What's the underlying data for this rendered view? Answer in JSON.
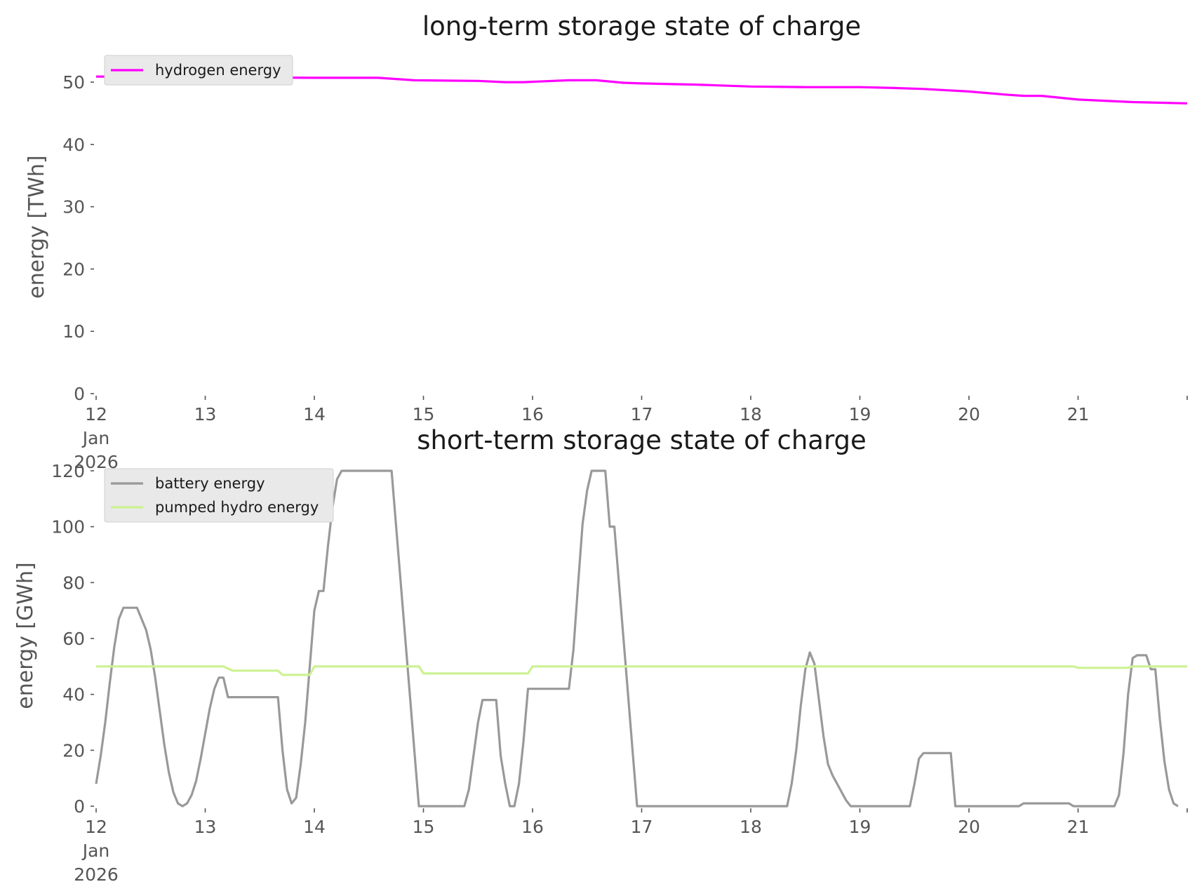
{
  "chart_data": [
    {
      "type": "line",
      "title": "long-term storage state of charge",
      "xlabel": "",
      "ylabel": "energy [TWh]",
      "xlim": [
        "2026-01-12",
        "2026-01-22"
      ],
      "ylim": [
        0,
        53.5
      ],
      "yticks": [
        0,
        10,
        20,
        30,
        40,
        50
      ],
      "xtick_labels": [
        "12",
        "13",
        "14",
        "15",
        "16",
        "17",
        "18",
        "19",
        "20",
        "21"
      ],
      "xtick_sublabels": [
        "Jan",
        "2026"
      ],
      "grid": false,
      "legend": "upper-left",
      "series": [
        {
          "name": "hydrogen energy",
          "color": "#ff00ff",
          "points": [
            [
              "2026-01-12 00:00",
              50.9
            ],
            [
              "2026-01-13 00:00",
              50.8
            ],
            [
              "2026-01-14 00:00",
              50.7
            ],
            [
              "2026-01-14 14:00",
              50.7
            ],
            [
              "2026-01-14 22:00",
              50.3
            ],
            [
              "2026-01-15 12:00",
              50.2
            ],
            [
              "2026-01-15 18:00",
              50.0
            ],
            [
              "2026-01-15 22:00",
              50.0
            ],
            [
              "2026-01-16 08:00",
              50.3
            ],
            [
              "2026-01-16 14:00",
              50.3
            ],
            [
              "2026-01-16 20:00",
              49.9
            ],
            [
              "2026-01-17 00:00",
              49.8
            ],
            [
              "2026-01-17 12:00",
              49.6
            ],
            [
              "2026-01-18 00:00",
              49.3
            ],
            [
              "2026-01-18 12:00",
              49.2
            ],
            [
              "2026-01-19 00:00",
              49.2
            ],
            [
              "2026-01-19 06:00",
              49.1
            ],
            [
              "2026-01-19 14:00",
              48.9
            ],
            [
              "2026-01-20 00:00",
              48.5
            ],
            [
              "2026-01-20 08:00",
              48.0
            ],
            [
              "2026-01-20 12:00",
              47.8
            ],
            [
              "2026-01-20 16:00",
              47.8
            ],
            [
              "2026-01-21 00:00",
              47.2
            ],
            [
              "2026-01-21 12:00",
              46.8
            ],
            [
              "2026-01-21 18:00",
              46.7
            ],
            [
              "2026-01-22 00:00",
              46.6
            ]
          ]
        }
      ]
    },
    {
      "type": "line",
      "title": "short-term storage state of charge",
      "xlabel": "",
      "ylabel": "energy [GWh]",
      "xlim": [
        "2026-01-12",
        "2026-01-22"
      ],
      "ylim": [
        0,
        122
      ],
      "yticks": [
        0,
        20,
        40,
        60,
        80,
        100,
        120
      ],
      "xtick_labels": [
        "12",
        "13",
        "14",
        "15",
        "16",
        "17",
        "18",
        "19",
        "20",
        "21"
      ],
      "xtick_sublabels": [
        "Jan",
        "2026"
      ],
      "grid": false,
      "legend": "upper-left",
      "series": [
        {
          "name": "battery energy",
          "color": "#999999",
          "points": [
            [
              "2026-01-12 00:00",
              8
            ],
            [
              "2026-01-12 01:00",
              18
            ],
            [
              "2026-01-12 02:00",
              30
            ],
            [
              "2026-01-12 03:00",
              44
            ],
            [
              "2026-01-12 04:00",
              57
            ],
            [
              "2026-01-12 05:00",
              67
            ],
            [
              "2026-01-12 06:00",
              71
            ],
            [
              "2026-01-12 07:00",
              71
            ],
            [
              "2026-01-12 08:00",
              71
            ],
            [
              "2026-01-12 09:00",
              71
            ],
            [
              "2026-01-12 10:00",
              67
            ],
            [
              "2026-01-12 11:00",
              63
            ],
            [
              "2026-01-12 12:00",
              56
            ],
            [
              "2026-01-12 13:00",
              46
            ],
            [
              "2026-01-12 14:00",
              34
            ],
            [
              "2026-01-12 15:00",
              22
            ],
            [
              "2026-01-12 16:00",
              12
            ],
            [
              "2026-01-12 17:00",
              5
            ],
            [
              "2026-01-12 18:00",
              1
            ],
            [
              "2026-01-12 19:00",
              0
            ],
            [
              "2026-01-12 20:00",
              1
            ],
            [
              "2026-01-12 21:00",
              4
            ],
            [
              "2026-01-12 22:00",
              9
            ],
            [
              "2026-01-12 23:00",
              17
            ],
            [
              "2026-01-13 00:00",
              26
            ],
            [
              "2026-01-13 01:00",
              35
            ],
            [
              "2026-01-13 02:00",
              42
            ],
            [
              "2026-01-13 03:00",
              46
            ],
            [
              "2026-01-13 04:00",
              46
            ],
            [
              "2026-01-13 05:00",
              39
            ],
            [
              "2026-01-13 06:00",
              39
            ],
            [
              "2026-01-13 16:00",
              39
            ],
            [
              "2026-01-13 17:00",
              20
            ],
            [
              "2026-01-13 18:00",
              6
            ],
            [
              "2026-01-13 19:00",
              1
            ],
            [
              "2026-01-13 20:00",
              3
            ],
            [
              "2026-01-13 21:00",
              15
            ],
            [
              "2026-01-13 22:00",
              30
            ],
            [
              "2026-01-13 23:00",
              50
            ],
            [
              "2026-01-14 00:00",
              70
            ],
            [
              "2026-01-14 01:00",
              77
            ],
            [
              "2026-01-14 02:00",
              77
            ],
            [
              "2026-01-14 03:00",
              93
            ],
            [
              "2026-01-14 04:00",
              107
            ],
            [
              "2026-01-14 05:00",
              117
            ],
            [
              "2026-01-14 06:00",
              120
            ],
            [
              "2026-01-14 17:00",
              120
            ],
            [
              "2026-01-14 18:00",
              100
            ],
            [
              "2026-01-14 19:00",
              80
            ],
            [
              "2026-01-14 20:00",
              60
            ],
            [
              "2026-01-14 21:00",
              40
            ],
            [
              "2026-01-14 22:00",
              20
            ],
            [
              "2026-01-14 23:00",
              0
            ],
            [
              "2026-01-15 09:00",
              0
            ],
            [
              "2026-01-15 10:00",
              6
            ],
            [
              "2026-01-15 11:00",
              18
            ],
            [
              "2026-01-15 12:00",
              30
            ],
            [
              "2026-01-15 13:00",
              38
            ],
            [
              "2026-01-15 16:00",
              38
            ],
            [
              "2026-01-15 17:00",
              18
            ],
            [
              "2026-01-15 18:00",
              8
            ],
            [
              "2026-01-15 19:00",
              0
            ],
            [
              "2026-01-15 20:00",
              0
            ],
            [
              "2026-01-15 21:00",
              8
            ],
            [
              "2026-01-15 22:00",
              23
            ],
            [
              "2026-01-15 23:00",
              42
            ],
            [
              "2026-01-16 08:00",
              42
            ],
            [
              "2026-01-16 09:00",
              56
            ],
            [
              "2026-01-16 10:00",
              79
            ],
            [
              "2026-01-16 11:00",
              101
            ],
            [
              "2026-01-16 12:00",
              113
            ],
            [
              "2026-01-16 13:00",
              120
            ],
            [
              "2026-01-16 16:00",
              120
            ],
            [
              "2026-01-16 17:00",
              100
            ],
            [
              "2026-01-16 18:00",
              100
            ],
            [
              "2026-01-16 19:00",
              80
            ],
            [
              "2026-01-16 20:00",
              60
            ],
            [
              "2026-01-16 21:00",
              40
            ],
            [
              "2026-01-16 22:00",
              20
            ],
            [
              "2026-01-16 23:00",
              0
            ],
            [
              "2026-01-18 08:00",
              0
            ],
            [
              "2026-01-18 09:00",
              8
            ],
            [
              "2026-01-18 10:00",
              20
            ],
            [
              "2026-01-18 11:00",
              36
            ],
            [
              "2026-01-18 12:00",
              49
            ],
            [
              "2026-01-18 13:00",
              55
            ],
            [
              "2026-01-18 14:00",
              51
            ],
            [
              "2026-01-18 15:00",
              38
            ],
            [
              "2026-01-18 16:00",
              25
            ],
            [
              "2026-01-18 17:00",
              15
            ],
            [
              "2026-01-18 18:00",
              11
            ],
            [
              "2026-01-18 19:00",
              8
            ],
            [
              "2026-01-18 20:00",
              5
            ],
            [
              "2026-01-18 21:00",
              2
            ],
            [
              "2026-01-18 22:00",
              0
            ],
            [
              "2026-01-19 11:00",
              0
            ],
            [
              "2026-01-19 12:00",
              8
            ],
            [
              "2026-01-19 13:00",
              17
            ],
            [
              "2026-01-19 14:00",
              19
            ],
            [
              "2026-01-19 20:00",
              19
            ],
            [
              "2026-01-19 21:00",
              0
            ],
            [
              "2026-01-20 11:00",
              0
            ],
            [
              "2026-01-20 12:00",
              1
            ],
            [
              "2026-01-20 22:00",
              1
            ],
            [
              "2026-01-20 23:00",
              0
            ],
            [
              "2026-01-21 08:00",
              0
            ],
            [
              "2026-01-21 09:00",
              4
            ],
            [
              "2026-01-21 10:00",
              19
            ],
            [
              "2026-01-21 11:00",
              40
            ],
            [
              "2026-01-21 12:00",
              53
            ],
            [
              "2026-01-21 13:00",
              54
            ],
            [
              "2026-01-21 15:00",
              54
            ],
            [
              "2026-01-21 16:00",
              49
            ],
            [
              "2026-01-21 17:00",
              49
            ],
            [
              "2026-01-21 18:00",
              31
            ],
            [
              "2026-01-21 19:00",
              16
            ],
            [
              "2026-01-21 20:00",
              6
            ],
            [
              "2026-01-21 21:00",
              1
            ],
            [
              "2026-01-21 22:00",
              0
            ]
          ]
        },
        {
          "name": "pumped hydro energy",
          "color": "#ccf291",
          "points": [
            [
              "2026-01-12 00:00",
              50
            ],
            [
              "2026-01-13 04:00",
              50
            ],
            [
              "2026-01-13 06:00",
              48.5
            ],
            [
              "2026-01-13 16:00",
              48.5
            ],
            [
              "2026-01-13 17:00",
              47
            ],
            [
              "2026-01-13 23:00",
              47
            ],
            [
              "2026-01-14 00:00",
              50
            ],
            [
              "2026-01-14 23:00",
              50
            ],
            [
              "2026-01-15 00:00",
              47.5
            ],
            [
              "2026-01-15 23:00",
              47.5
            ],
            [
              "2026-01-16 00:00",
              50
            ],
            [
              "2026-01-20 23:00",
              50
            ],
            [
              "2026-01-21 00:00",
              49.5
            ],
            [
              "2026-01-21 11:00",
              49.5
            ],
            [
              "2026-01-21 12:00",
              50
            ],
            [
              "2026-01-22 00:00",
              50
            ]
          ]
        }
      ]
    }
  ]
}
